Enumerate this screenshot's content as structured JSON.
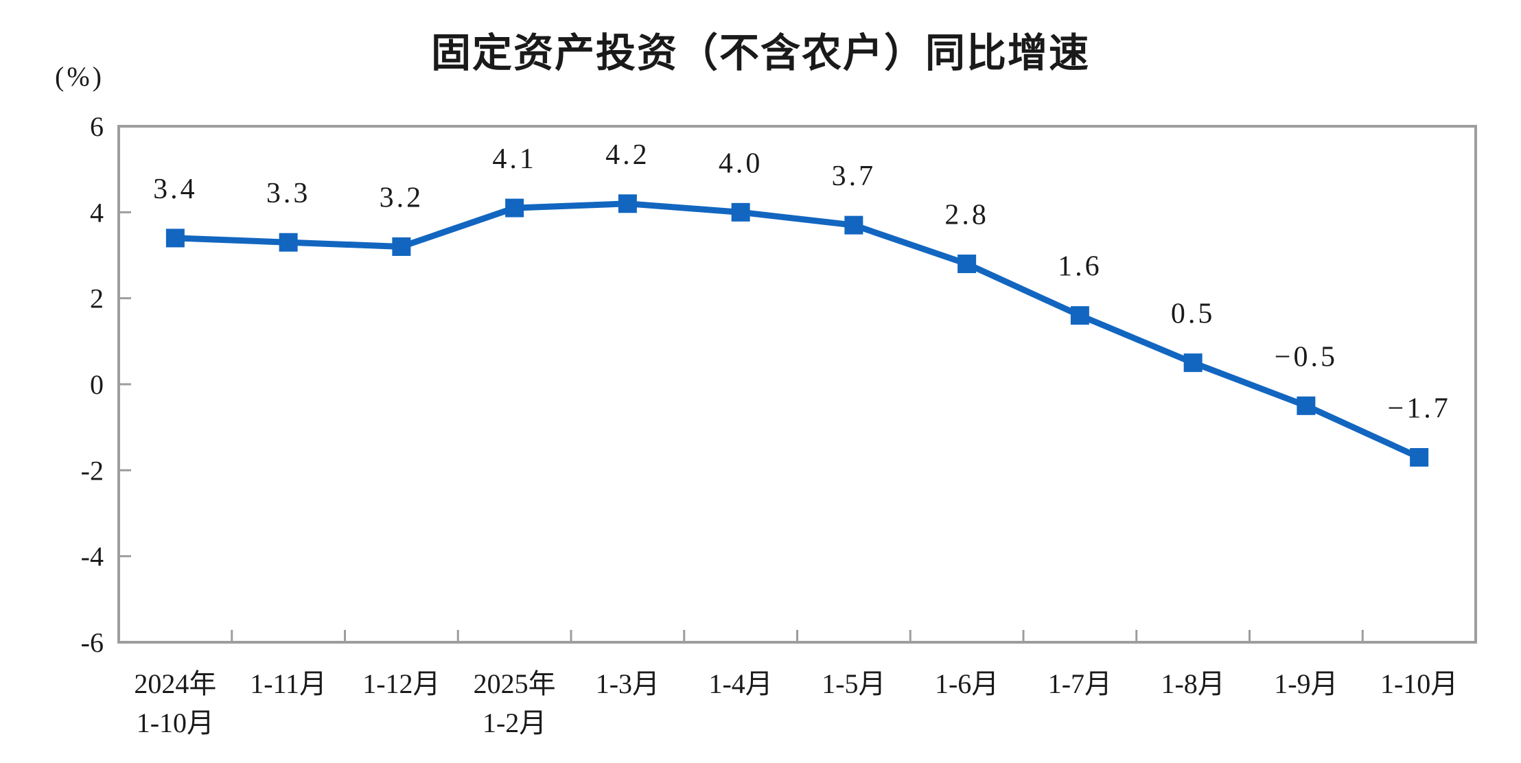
{
  "title": "固定资产投资（不含农户）同比增速",
  "chart_data": {
    "type": "line",
    "title": "固定资产投资（不含农户）同比增速",
    "ylabel": "(%)",
    "xlabel": "",
    "categories": [
      [
        "2024年",
        "1-10月"
      ],
      [
        "1-11月"
      ],
      [
        "1-12月"
      ],
      [
        "2025年",
        "1-2月"
      ],
      [
        "1-3月"
      ],
      [
        "1-4月"
      ],
      [
        "1-5月"
      ],
      [
        "1-6月"
      ],
      [
        "1-7月"
      ],
      [
        "1-8月"
      ],
      [
        "1-9月"
      ],
      [
        "1-10月"
      ]
    ],
    "series": [
      {
        "name": "同比增速",
        "values": [
          3.4,
          3.3,
          3.2,
          4.1,
          4.2,
          4.0,
          3.7,
          2.8,
          1.6,
          0.5,
          -0.5,
          -1.7
        ],
        "data_labels": [
          "3.4",
          "3.3",
          "3.2",
          "4.1",
          "4.2",
          "4.0",
          "3.7",
          "2.8",
          "1.6",
          "0.5",
          "−0.5",
          "−1.7"
        ]
      }
    ],
    "ylim": [
      -6,
      6
    ],
    "ytick_step": 2,
    "yticks": [
      6,
      4,
      2,
      0,
      -2,
      -4,
      -6
    ],
    "ytick_labels": [
      "6",
      "4",
      "2",
      "0",
      "-2",
      "-4",
      "-6"
    ],
    "grid": false,
    "legend_position": "none",
    "marker": "square",
    "colors": {
      "line": "#1266C0",
      "marker": "#1266C0",
      "axis": "#9d9d9d",
      "text": "#1a1a1a",
      "background": "#ffffff"
    }
  }
}
